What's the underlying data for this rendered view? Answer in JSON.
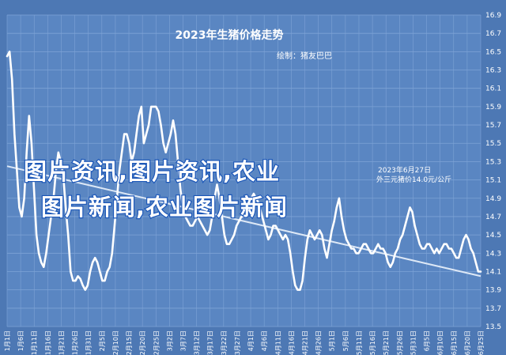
{
  "colors": {
    "background": "#4d78b4",
    "plot_background": "#5a86c2",
    "grid": "#7ea3d6",
    "line": "#ffffff",
    "trend": "#dde8f6",
    "watermark_stroke": "#1c57b8"
  },
  "chart_data": {
    "type": "line",
    "title": "2023年生猪价格走势",
    "subtitle": "绘制：猪友巴巴",
    "annotation": [
      "2023年6月27日",
      "外三元猪价14.0元/公斤"
    ],
    "watermark_lines": [
      "图片资讯,图片资讯,农业",
      "图片新闻,农业图片新闻"
    ],
    "ylim": [
      13.5,
      16.9
    ],
    "y_ticks": [
      13.5,
      13.7,
      13.9,
      14.1,
      14.3,
      14.5,
      14.7,
      14.9,
      15.1,
      15.3,
      15.5,
      15.7,
      15.9,
      16.1,
      16.3,
      16.5,
      16.7,
      16.9
    ],
    "x_ticks": [
      "1月1日",
      "1月6日",
      "1月11日",
      "1月16日",
      "1月21日",
      "1月26日",
      "1月31日",
      "2月5日",
      "2月10日",
      "2月15日",
      "2月20日",
      "2月25日",
      "3月2日",
      "3月7日",
      "3月12日",
      "3月17日",
      "3月22日",
      "3月27日",
      "4月1日",
      "4月6日",
      "4月11日",
      "4月16日",
      "4月21日",
      "4月26日",
      "5月1日",
      "5月6日",
      "5月11日",
      "5月16日",
      "5月21日",
      "5月26日",
      "5月31日",
      "6月5日",
      "6月10日",
      "6月15日",
      "6月20日",
      "6月25日"
    ],
    "grid": true,
    "series": [
      {
        "values": [
          16.45,
          16.5,
          16.2,
          15.6,
          15.2,
          14.8,
          14.7,
          14.9,
          15.4,
          15.8,
          15.5,
          15.0,
          14.5,
          14.3,
          14.2,
          14.15,
          14.3,
          14.5,
          14.7,
          14.9,
          15.2,
          15.4,
          15.3,
          15.15,
          14.8,
          14.5,
          14.1,
          14.0,
          14.0,
          14.05,
          14.02,
          13.95,
          13.9,
          13.95,
          14.1,
          14.2,
          14.25,
          14.2,
          14.1,
          14.0,
          14.0,
          14.1,
          14.15,
          14.3,
          14.6,
          14.9,
          15.2,
          15.4,
          15.6,
          15.6,
          15.5,
          15.3,
          15.4,
          15.6,
          15.8,
          15.9,
          15.5,
          15.6,
          15.7,
          15.9,
          15.9,
          15.9,
          15.85,
          15.7,
          15.5,
          15.4,
          15.5,
          15.6,
          15.75,
          15.6,
          15.3,
          15.0,
          14.8,
          14.7,
          14.65,
          14.6,
          14.6,
          14.65,
          14.7,
          14.65,
          14.6,
          14.55,
          14.5,
          14.55,
          14.7,
          14.9,
          15.05,
          14.9,
          14.7,
          14.5,
          14.4,
          14.4,
          14.45,
          14.5,
          14.6,
          14.65,
          14.7,
          14.7,
          14.75,
          14.8,
          14.9,
          14.95,
          14.9,
          14.85,
          14.75,
          14.65,
          14.55,
          14.45,
          14.5,
          14.6,
          14.6,
          14.55,
          14.5,
          14.45,
          14.5,
          14.45,
          14.3,
          14.1,
          13.95,
          13.9,
          13.9,
          14.0,
          14.25,
          14.45,
          14.55,
          14.5,
          14.45,
          14.5,
          14.55,
          14.5,
          14.35,
          14.25,
          14.4,
          14.55,
          14.65,
          14.8,
          14.9,
          14.7,
          14.55,
          14.45,
          14.4,
          14.35,
          14.35,
          14.3,
          14.3,
          14.35,
          14.4,
          14.4,
          14.35,
          14.3,
          14.3,
          14.35,
          14.4,
          14.35,
          14.35,
          14.3,
          14.2,
          14.15,
          14.2,
          14.3,
          14.35,
          14.45,
          14.5,
          14.6,
          14.7,
          14.8,
          14.75,
          14.6,
          14.5,
          14.4,
          14.35,
          14.35,
          14.4,
          14.4,
          14.35,
          14.3,
          14.35,
          14.3,
          14.35,
          14.4,
          14.4,
          14.35,
          14.35,
          14.3,
          14.25,
          14.25,
          14.35,
          14.45,
          14.5,
          14.45,
          14.35,
          14.3,
          14.2,
          14.1,
          14.1
        ]
      },
      {
        "values": [
          15.25,
          14.05
        ]
      }
    ]
  }
}
